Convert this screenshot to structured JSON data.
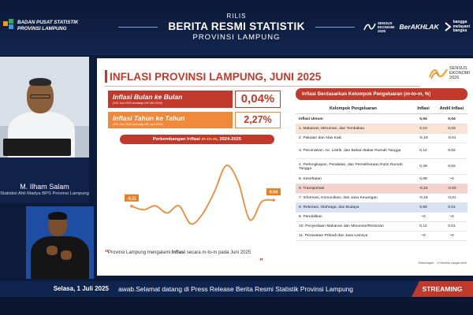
{
  "header": {
    "org_line1": "BADAN PUSAT STATISTIK",
    "org_line2": "PROVINSI LAMPUNG",
    "rilis": "RILIS",
    "title": "BERITA RESMI STATISTIK",
    "subtitle": "PROVINSI LAMPUNG",
    "sensus_line1": "SENSUS",
    "sensus_line2": "EKONOMI",
    "sensus_line3": "2026",
    "berakhlak": "BerAKHLAK",
    "bangga_line1": "bangga",
    "bangga_line2": "melayani",
    "bangga_line3": "bangsa"
  },
  "presenter": {
    "name": "M. Ilham Salam",
    "role": "Statistisi Ahli Madya BPS Provinsi Lampung"
  },
  "slide": {
    "title": "INFLASI PROVINSI LAMPUNG, JUNI 2025",
    "sensus_line1": "SENSUS",
    "sensus_line2": "EKONOMI",
    "sensus_line3": "2026",
    "kpi_mtm": {
      "label": "Inflasi Bulan ke Bulan",
      "note": "(IHK Juni 2025 terhadap IHK Mei 2025)",
      "value": "0,04%"
    },
    "kpi_yoy": {
      "label": "Inflasi Tahun ke Tahun",
      "note": "(IHK Juni 2025 terhadap IHK Juni 2024)",
      "value": "2,27%"
    },
    "chart_title_pre": "Perkembangan Inflasi ",
    "chart_title_em": "m-to-m",
    "chart_title_post": ", 2024-2025",
    "quote_pre": "Provinsi Lampung mengalami ",
    "quote_bold": "Inflasi",
    "quote_post": " secara m-to-m pada Juni 2025",
    "quote_open": "“",
    "quote_close": "”",
    "table": {
      "title_pre": "Inflasi Berdasarkan Kelompok Pengeluaran (",
      "title_em": "m-to-m",
      "title_post": ", %)",
      "headers": [
        "Kelompok Pengeluaran",
        "Inflasi",
        "Andil Inflasi"
      ],
      "rows": [
        {
          "name": "Inflasi Umum",
          "inflasi": "0,04",
          "andil": "0,04",
          "style": "bold",
          "h": 13
        },
        {
          "name": "1.  Makanan, Minuman, dan Tembakau",
          "inflasi": "0,10",
          "andil": "0,03",
          "style": "hl-peach",
          "h": 12
        },
        {
          "name": "2.  Pakaian dan Alas Kaki",
          "inflasi": "-0,19",
          "andil": "-0,01",
          "style": "",
          "h": 12
        },
        {
          "name": "3.  Perumahan, Air, Listrik, dan Bahan Bakar Rumah Tangga",
          "inflasi": "0,12",
          "andil": "0,02",
          "style": "",
          "h": 20
        },
        {
          "name": "4.  Perlengkapan, Peralatan, dan Pemeliharaan Rutin Rumah Tangga",
          "inflasi": "0,29",
          "andil": "0,02",
          "style": "",
          "h": 20
        },
        {
          "name": "5.  Kesehatan",
          "inflasi": "0,08",
          "andil": "~0",
          "style": "",
          "h": 12
        },
        {
          "name": "6.  Transportasi",
          "inflasi": "-0,24",
          "andil": "-0,03",
          "style": "hl-red",
          "h": 12
        },
        {
          "name": "7.  Informasi, Komunikasi, dan Jasa Keuangan",
          "inflasi": "-0,18",
          "andil": "-0,01",
          "style": "",
          "h": 12
        },
        {
          "name": "8.  Rekreasi, Olahraga, dan Budaya",
          "inflasi": "0,59",
          "andil": "0,01",
          "style": "hl-blue",
          "h": 12
        },
        {
          "name": "9.  Pendidikan",
          "inflasi": "~0",
          "andil": "~0",
          "style": "",
          "h": 12
        },
        {
          "name": "10. Penyediaan Makanan dan Minuman/Restoran",
          "inflasi": "0,12",
          "andil": "0,01",
          "style": "",
          "h": 12
        },
        {
          "name": "11. Perawatan Pribadi dan Jasa Lainnya",
          "inflasi": "~0",
          "andil": "~0",
          "style": "",
          "h": 12
        }
      ],
      "note": "Keterangan : ~0 bernilai sangat kecil"
    }
  },
  "chart_data": {
    "type": "line",
    "title": "Perkembangan Inflasi m-to-m, 2024-2025",
    "x": [
      1,
      2,
      3,
      4,
      5,
      6,
      7,
      8,
      9,
      10,
      11,
      12,
      13
    ],
    "values": [
      -0.11,
      -0.2,
      -0.1,
      -0.28,
      -0.1,
      -0.55,
      -0.3,
      0.25,
      0.9,
      0.5,
      -0.45,
      0.0,
      0.04
    ],
    "data_labels": {
      "first": "-0,11",
      "last": "0,04"
    },
    "ylim": [
      -0.7,
      1.1
    ],
    "grid": false,
    "color": "#f08a3a"
  },
  "ticker": {
    "date": "Selasa, 1 Juli 2025",
    "text": "awab.Selamat datang di Press Release Berita Resmi Statistik Provinsi Lampung",
    "streaming": "STREAMING"
  }
}
